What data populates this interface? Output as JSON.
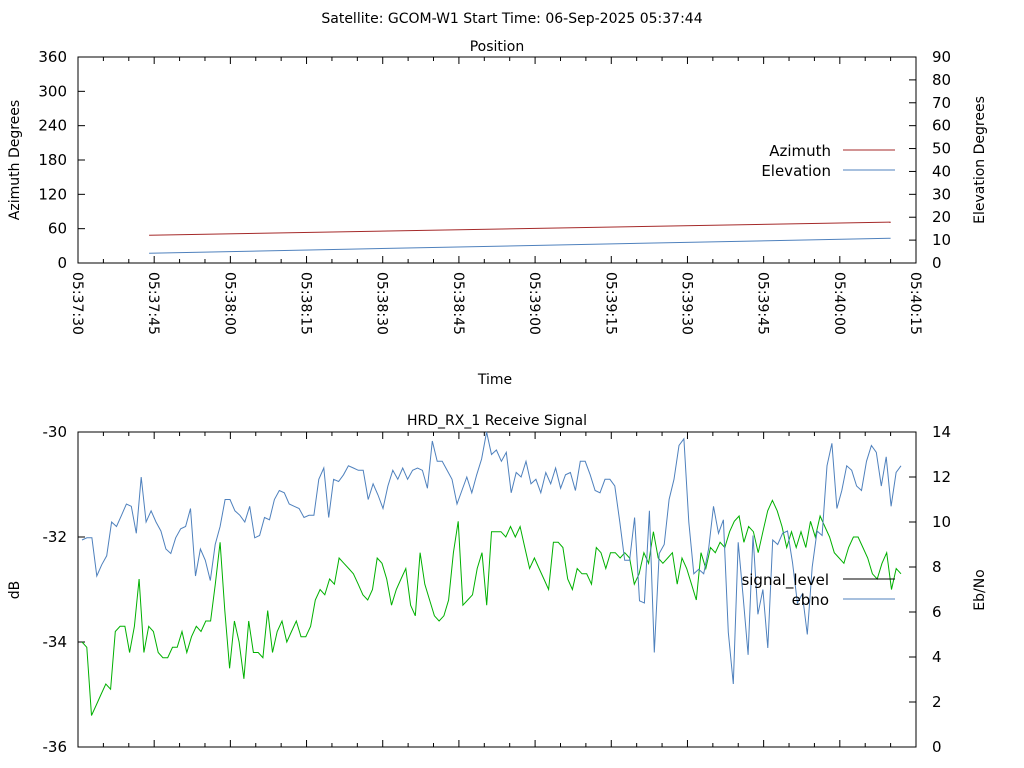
{
  "header": {
    "text": "Satellite: GCOM-W1    Start Time: 06-Sep-2025 05:37:44"
  },
  "chart_data": [
    {
      "type": "line",
      "title": "Position",
      "xlabel": "Time",
      "ylabel": "Azimuth Degrees",
      "y2label": "Elevation Degrees",
      "x_tick_labels": [
        "05:37:30",
        "05:37:45",
        "05:38:00",
        "05:38:15",
        "05:38:30",
        "05:38:45",
        "05:39:00",
        "05:39:15",
        "05:39:30",
        "05:39:45",
        "05:40:00",
        "05:40:15"
      ],
      "xlim_seconds": [
        0,
        165
      ],
      "ylim": [
        0,
        360
      ],
      "y_ticks": [
        "0",
        "60",
        "120",
        "180",
        "240",
        "300",
        "360"
      ],
      "y2lim": [
        0,
        90
      ],
      "y2_ticks": [
        "0",
        "10",
        "20",
        "30",
        "40",
        "50",
        "60",
        "70",
        "80",
        "90"
      ],
      "legend_position": "right",
      "series": [
        {
          "name": "Azimuth",
          "axis": "y",
          "color": "#a52a2a",
          "x": [
            14,
            160
          ],
          "values": [
            48.5,
            71.5
          ]
        },
        {
          "name": "Elevation",
          "axis": "y2",
          "color": "#4f81bd",
          "x": [
            14,
            160
          ],
          "values": [
            4.3,
            10.8
          ]
        }
      ]
    },
    {
      "type": "line",
      "title": "HRD_RX_1 Receive Signal",
      "ylabel": "dB",
      "y2label": "Eb/No",
      "ylim": [
        -36,
        -30
      ],
      "y_ticks": [
        "-36",
        "-34",
        "-32",
        "-30"
      ],
      "y2lim": [
        0,
        14
      ],
      "y2_ticks": [
        "0",
        "2",
        "4",
        "6",
        "8",
        "10",
        "12",
        "14"
      ],
      "legend_position": "right",
      "series": [
        {
          "name": "signal_level",
          "axis": "y",
          "color": "#00b000",
          "values": [
            -34.0,
            -34.1,
            -35.4,
            -35.2,
            -35.0,
            -34.8,
            -34.9,
            -33.8,
            -33.7,
            -33.7,
            -34.2,
            -33.7,
            -32.8,
            -34.2,
            -33.7,
            -33.8,
            -34.2,
            -34.3,
            -34.3,
            -34.1,
            -34.1,
            -33.8,
            -34.2,
            -33.9,
            -33.7,
            -33.8,
            -33.6,
            -33.6,
            -32.9,
            -32.1,
            -33.4,
            -34.5,
            -33.6,
            -34.0,
            -34.7,
            -33.6,
            -34.2,
            -34.2,
            -34.3,
            -33.4,
            -34.2,
            -33.8,
            -33.6,
            -34.0,
            -33.8,
            -33.6,
            -33.9,
            -33.9,
            -33.7,
            -33.2,
            -33.0,
            -33.1,
            -32.8,
            -32.9,
            -32.4,
            -32.5,
            -32.6,
            -32.7,
            -32.9,
            -33.1,
            -33.2,
            -33.0,
            -32.4,
            -32.5,
            -32.8,
            -33.3,
            -33.0,
            -32.8,
            -32.6,
            -33.3,
            -33.5,
            -32.3,
            -32.9,
            -33.2,
            -33.5,
            -33.6,
            -33.5,
            -33.2,
            -32.3,
            -31.7,
            -33.3,
            -33.2,
            -33.1,
            -32.6,
            -32.3,
            -33.3,
            -31.9,
            -31.9,
            -31.9,
            -32.0,
            -31.8,
            -32.0,
            -31.8,
            -32.2,
            -32.6,
            -32.4,
            -32.6,
            -32.8,
            -33.0,
            -32.1,
            -32.1,
            -32.2,
            -32.8,
            -33.0,
            -32.6,
            -32.7,
            -32.7,
            -32.9,
            -32.2,
            -32.3,
            -32.6,
            -32.3,
            -32.3,
            -32.4,
            -32.3,
            -32.4,
            -32.9,
            -32.7,
            -32.3,
            -32.5,
            -31.9,
            -32.4,
            -32.5,
            -32.4,
            -32.3,
            -32.9,
            -32.4,
            -32.6,
            -32.9,
            -33.2,
            -32.3,
            -32.6,
            -32.2,
            -32.3,
            -32.1,
            -32.2,
            -31.9,
            -31.7,
            -31.6,
            -32.1,
            -31.8,
            -31.9,
            -32.3,
            -31.9,
            -31.5,
            -31.3,
            -31.5,
            -31.8,
            -32.2,
            -31.9,
            -32.2,
            -31.9,
            -32.2,
            -31.7,
            -32.0,
            -31.6,
            -31.8,
            -32.0,
            -32.3,
            -32.4,
            -32.5,
            -32.2,
            -32.0,
            -32.0,
            -32.2,
            -32.4,
            -32.7,
            -32.8,
            -32.5,
            -32.3,
            -33.0,
            -32.6,
            -32.7
          ]
        },
        {
          "name": "ebno",
          "axis": "y2",
          "color": "#4f81bd",
          "values": [
            9.2,
            9.3,
            9.3,
            7.6,
            8.1,
            8.5,
            10.0,
            9.8,
            10.3,
            10.8,
            10.7,
            9.5,
            12.0,
            10.0,
            10.5,
            10.0,
            9.6,
            8.8,
            8.6,
            9.3,
            9.7,
            9.8,
            10.6,
            7.6,
            8.8,
            8.3,
            7.4,
            9.0,
            9.8,
            11.0,
            11.0,
            10.5,
            10.3,
            10.0,
            10.7,
            9.3,
            9.4,
            10.2,
            10.1,
            11.0,
            11.4,
            11.3,
            10.8,
            10.7,
            10.6,
            10.2,
            10.3,
            10.3,
            11.9,
            12.4,
            10.2,
            11.9,
            11.8,
            12.1,
            12.5,
            12.4,
            12.3,
            12.3,
            11.0,
            11.7,
            11.2,
            10.6,
            11.6,
            12.3,
            11.9,
            12.4,
            11.9,
            12.3,
            12.4,
            12.3,
            11.5,
            13.6,
            12.7,
            12.7,
            12.3,
            11.9,
            10.8,
            11.4,
            12.0,
            11.3,
            12.1,
            12.8,
            14.0,
            13.0,
            13.2,
            12.7,
            13.1,
            11.3,
            12.2,
            12.0,
            12.7,
            11.7,
            11.9,
            11.3,
            12.2,
            11.7,
            12.4,
            11.5,
            12.1,
            12.2,
            11.4,
            12.7,
            12.7,
            12.1,
            11.4,
            11.3,
            11.9,
            11.9,
            11.6,
            10.0,
            8.3,
            8.3,
            10.2,
            6.5,
            6.4,
            10.5,
            4.2,
            8.6,
            9.0,
            11.0,
            11.9,
            13.4,
            13.7,
            10.0,
            7.7,
            7.9,
            7.7,
            8.8,
            10.7,
            9.5,
            10.1,
            5.1,
            2.8,
            9.1,
            6.7,
            4.1,
            9.4,
            5.9,
            7.0,
            4.4,
            9.2,
            9.0,
            9.5,
            9.6,
            8.2,
            6.4,
            6.8,
            5.0,
            8.0,
            9.6,
            9.4,
            12.5,
            13.5,
            10.6,
            11.4,
            12.5,
            12.3,
            11.6,
            11.4,
            12.7,
            13.4,
            13.1,
            11.6,
            12.9,
            10.7,
            12.2,
            12.5
          ]
        }
      ]
    }
  ]
}
